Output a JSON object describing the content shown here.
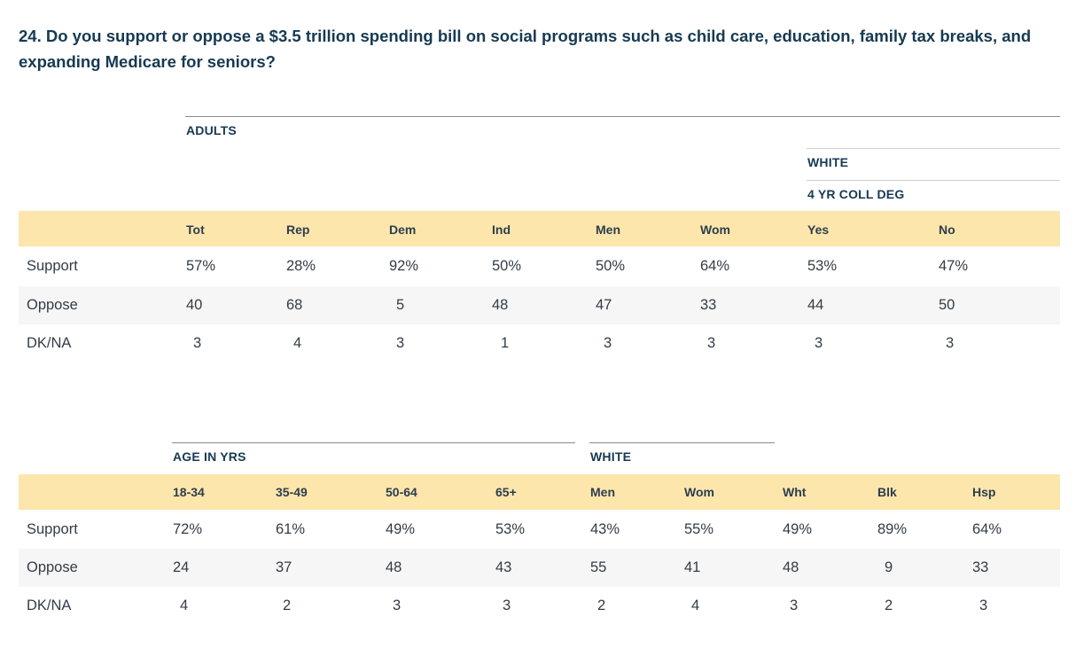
{
  "question": "24. Do you support or oppose a $3.5 trillion spending bill on social programs such as child care, education, family tax breaks, and expanding Medicare for seniors?",
  "table1": {
    "group_adults": "ADULTS",
    "group_white": "WHITE",
    "group_coll": "4 YR COLL DEG",
    "columns": [
      "Tot",
      "Rep",
      "Dem",
      "Ind",
      "Men",
      "Wom",
      "Yes",
      "No"
    ],
    "rows": [
      {
        "label": "Support",
        "values": [
          "57%",
          "28%",
          "92%",
          "50%",
          "50%",
          "64%",
          "53%",
          "47%"
        ]
      },
      {
        "label": "Oppose",
        "values": [
          "40",
          "68",
          "5",
          "48",
          "47",
          "33",
          "44",
          "50"
        ]
      },
      {
        "label": "DK/NA",
        "values": [
          "3",
          "4",
          "3",
          "1",
          "3",
          "3",
          "3",
          "3"
        ]
      }
    ]
  },
  "table2": {
    "group_age": "AGE IN YRS",
    "group_white": "WHITE",
    "columns": [
      "18-34",
      "35-49",
      "50-64",
      "65+",
      "Men",
      "Wom",
      "Wht",
      "Blk",
      "Hsp"
    ],
    "rows": [
      {
        "label": "Support",
        "values": [
          "72%",
          "61%",
          "49%",
          "53%",
          "43%",
          "55%",
          "49%",
          "89%",
          "64%"
        ]
      },
      {
        "label": "Oppose",
        "values": [
          "24",
          "37",
          "48",
          "43",
          "55",
          "41",
          "48",
          "9",
          "33"
        ]
      },
      {
        "label": "DK/NA",
        "values": [
          "4",
          "2",
          "3",
          "3",
          "2",
          "4",
          "3",
          "2",
          "3"
        ]
      }
    ]
  }
}
